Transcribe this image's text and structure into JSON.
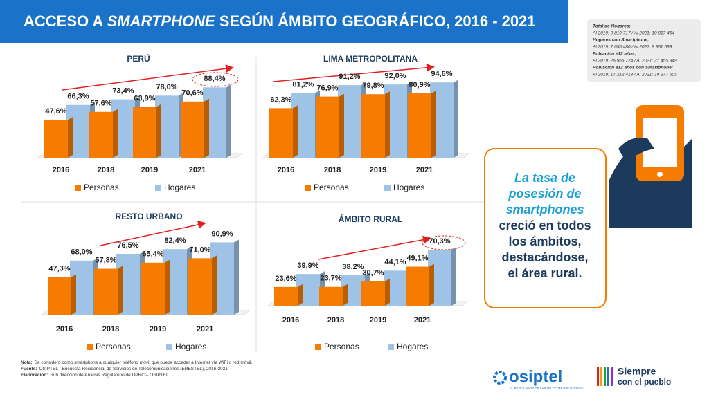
{
  "header": {
    "title_parts": [
      "ACCESO A ",
      "SMARTPHONE",
      " SEGÚN ÁMBITO GEOGRÁFICO, 2016 - 2021"
    ]
  },
  "sidebar": [
    "Total de Hogares;",
    "Al 2019: 9 819 717 / Al 2021: 10 017 464",
    "Hogares con Smartphone;",
    "Al 2019: 7 655 480 / Al 2021: 8 857 089",
    "Población ≥12 años;",
    "Al 2019: 26 956 724 / Al 2021: 27 455 349",
    "Población ≥12 años con Smartphone;",
    "Al 2019: 17 212 418 / Al 2021: 19 377 605"
  ],
  "callout": {
    "highlight": [
      "La tasa de",
      "posesión de",
      "smartphones"
    ],
    "text": [
      "creció en todos",
      "los ámbitos,",
      "destacándose,",
      "el área rural."
    ]
  },
  "footer": [
    [
      "Nota:",
      "Se consideró como smartphone a cualquier teléfono móvil que puede acceder a Internet vía WiFi o red móvil."
    ],
    [
      "Fuente:",
      "OSIPTEL - Encuesta Residencial de Servicios de Telecomunicaciones (ERESTEL), 2016-2021."
    ],
    [
      "Elaboración:",
      "Sub dirección de Análisis Regulatorio de DPRC – OSIPTEL."
    ]
  ],
  "logos": {
    "osiptel": "osiptel",
    "osiptel_tagline": "EL REGULADOR DE LAS TELECOMUNICACIONES",
    "siempre": "Siempre",
    "pueblo": "con el pueblo"
  },
  "chart_data": [
    {
      "type": "bar",
      "title": "PERÚ",
      "categories": [
        "2016",
        "2018",
        "2019",
        "2021"
      ],
      "series": [
        {
          "name": "Personas",
          "color": "#f57c00",
          "values": [
            47.6,
            57.6,
            63.9,
            70.6
          ],
          "value_labels": [
            "47,6%",
            "57,6%",
            "63,9%",
            "70,6%"
          ]
        },
        {
          "name": "Hogares",
          "color": "#9ec3e6",
          "values": [
            66.3,
            73.4,
            78.0,
            88.4
          ],
          "value_labels": [
            "66,3%",
            "73,4%",
            "78,0%",
            "88,4%"
          ]
        }
      ]
    },
    {
      "type": "bar",
      "title": "LIMA METROPOLITANA",
      "categories": [
        "2016",
        "2018",
        "2019",
        "2021"
      ],
      "series": [
        {
          "name": "Personas",
          "color": "#f57c00",
          "values": [
            62.3,
            76.9,
            79.8,
            80.9
          ],
          "value_labels": [
            "62,3%",
            "76,9%",
            "79,8%",
            "80,9%"
          ]
        },
        {
          "name": "Hogares",
          "color": "#9ec3e6",
          "values": [
            81.2,
            91.2,
            92.0,
            94.6
          ],
          "value_labels": [
            "81,2%",
            "91,2%",
            "92,0%",
            "94,6%"
          ]
        }
      ]
    },
    {
      "type": "bar",
      "title": "RESTO URBANO",
      "categories": [
        "2016",
        "2018",
        "2019",
        "2021"
      ],
      "series": [
        {
          "name": "Personas",
          "color": "#f57c00",
          "values": [
            47.3,
            57.8,
            65.4,
            71.0
          ],
          "value_labels": [
            "47,3%",
            "57,8%",
            "65,4%",
            "71,0%"
          ]
        },
        {
          "name": "Hogares",
          "color": "#9ec3e6",
          "values": [
            68.0,
            76.5,
            82.4,
            90.9
          ],
          "value_labels": [
            "68,0%",
            "76,5%",
            "82,4%",
            "90,9%"
          ]
        }
      ]
    },
    {
      "type": "bar",
      "title": "ÁMBITO RURAL",
      "categories": [
        "2016",
        "2018",
        "2019",
        "2021"
      ],
      "series": [
        {
          "name": "Personas",
          "color": "#f57c00",
          "values": [
            23.6,
            23.7,
            30.7,
            49.1
          ],
          "value_labels": [
            "23,6%",
            "23,7%",
            "30,7%",
            "49,1%"
          ]
        },
        {
          "name": "Hogares",
          "color": "#9ec3e6",
          "values": [
            39.9,
            38.2,
            44.1,
            70.3
          ],
          "value_labels": [
            "39,9%",
            "38,2%",
            "44,1%",
            "70,3%"
          ]
        }
      ]
    }
  ]
}
